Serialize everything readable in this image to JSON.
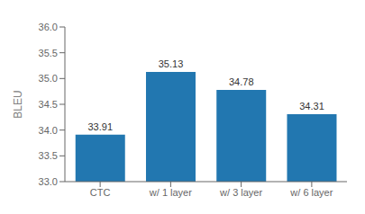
{
  "chart_data": {
    "type": "bar",
    "categories": [
      "CTC",
      "w/ 1 layer",
      "w/ 3 layer",
      "w/ 6 layer"
    ],
    "values": [
      33.91,
      35.13,
      34.78,
      34.31
    ],
    "color": "#2277b0",
    "ylabel": "BLEU",
    "ylim": [
      33.0,
      36.0
    ],
    "yticks": [
      {
        "value": 33.0,
        "label": "33.0"
      },
      {
        "value": 33.5,
        "label": "33.5"
      },
      {
        "value": 34.0,
        "label": "34.0"
      },
      {
        "value": 34.5,
        "label": "34.5"
      },
      {
        "value": 35.0,
        "label": "35.0"
      },
      {
        "value": 35.5,
        "label": "35.5"
      },
      {
        "value": 36.0,
        "label": "36.0"
      }
    ],
    "grid": false,
    "data_labels": true
  }
}
